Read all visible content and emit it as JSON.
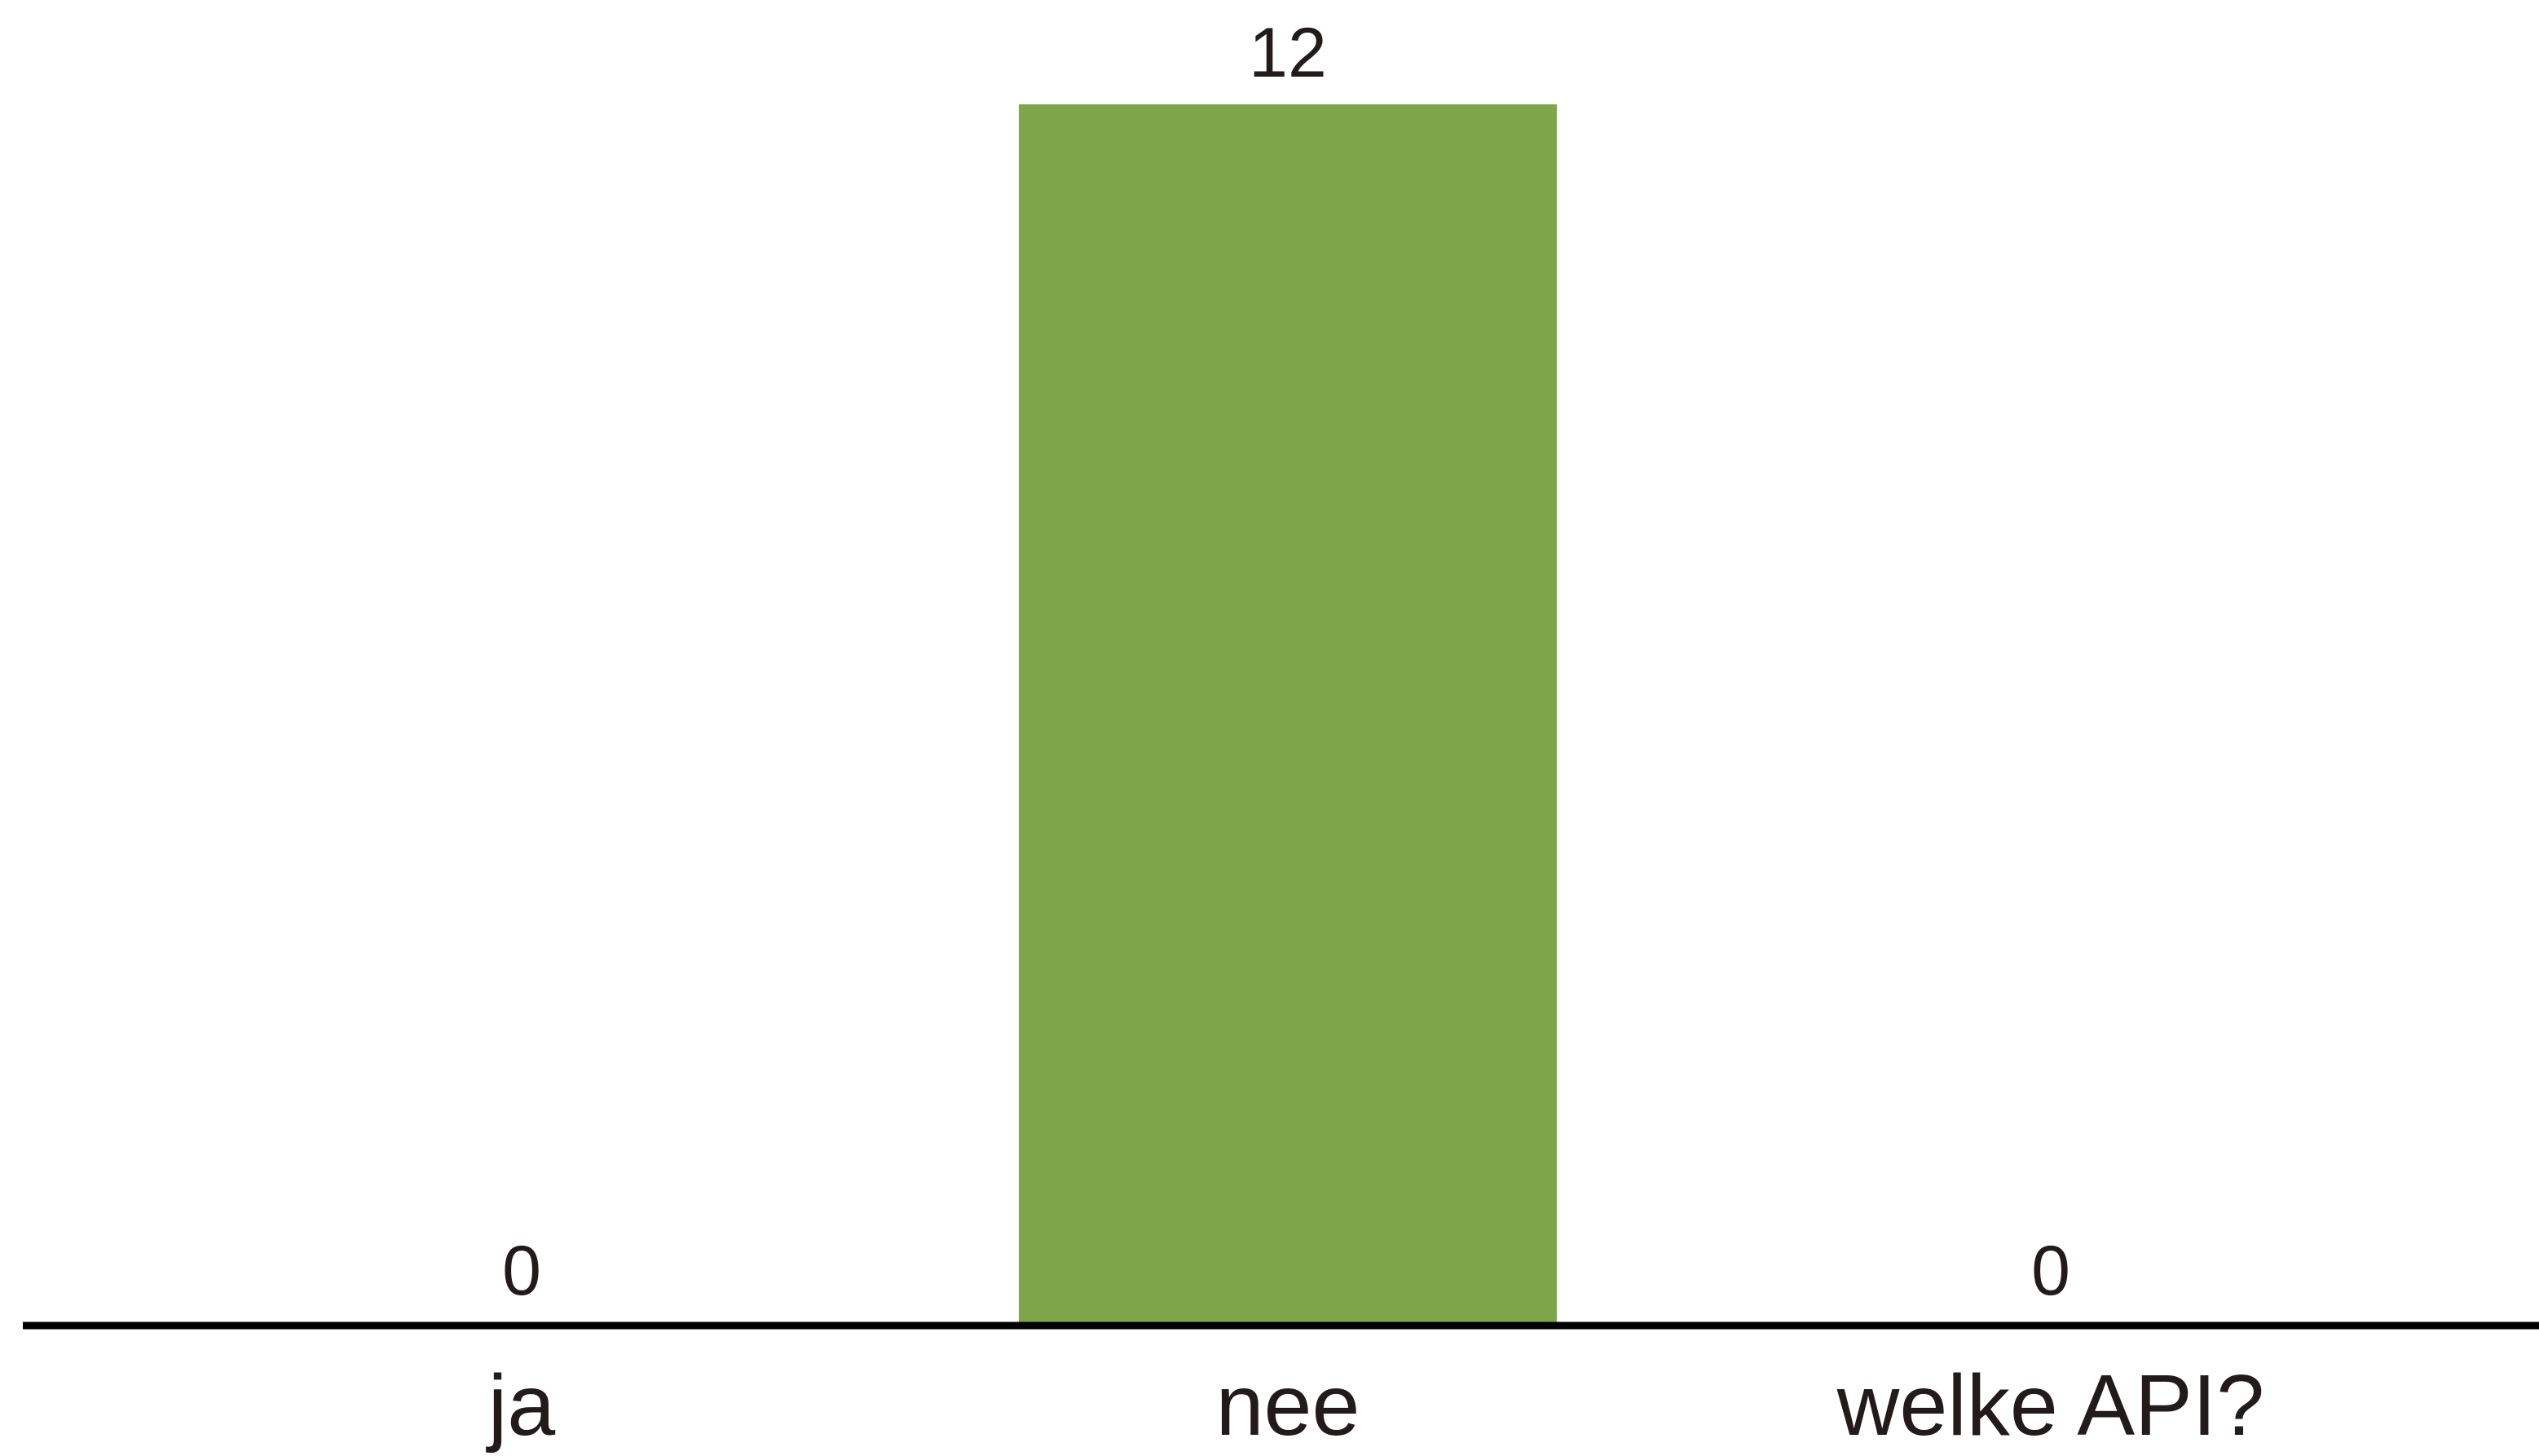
{
  "chart_data": {
    "type": "bar",
    "categories": [
      "ja",
      "nee",
      "welke API?"
    ],
    "values": [
      0,
      12,
      0
    ],
    "ylim": [
      0,
      12
    ],
    "grid": false,
    "legend": "none",
    "bar_color": "#7fa54a",
    "axis_color": "#000000",
    "text_color": "#231a1a"
  }
}
